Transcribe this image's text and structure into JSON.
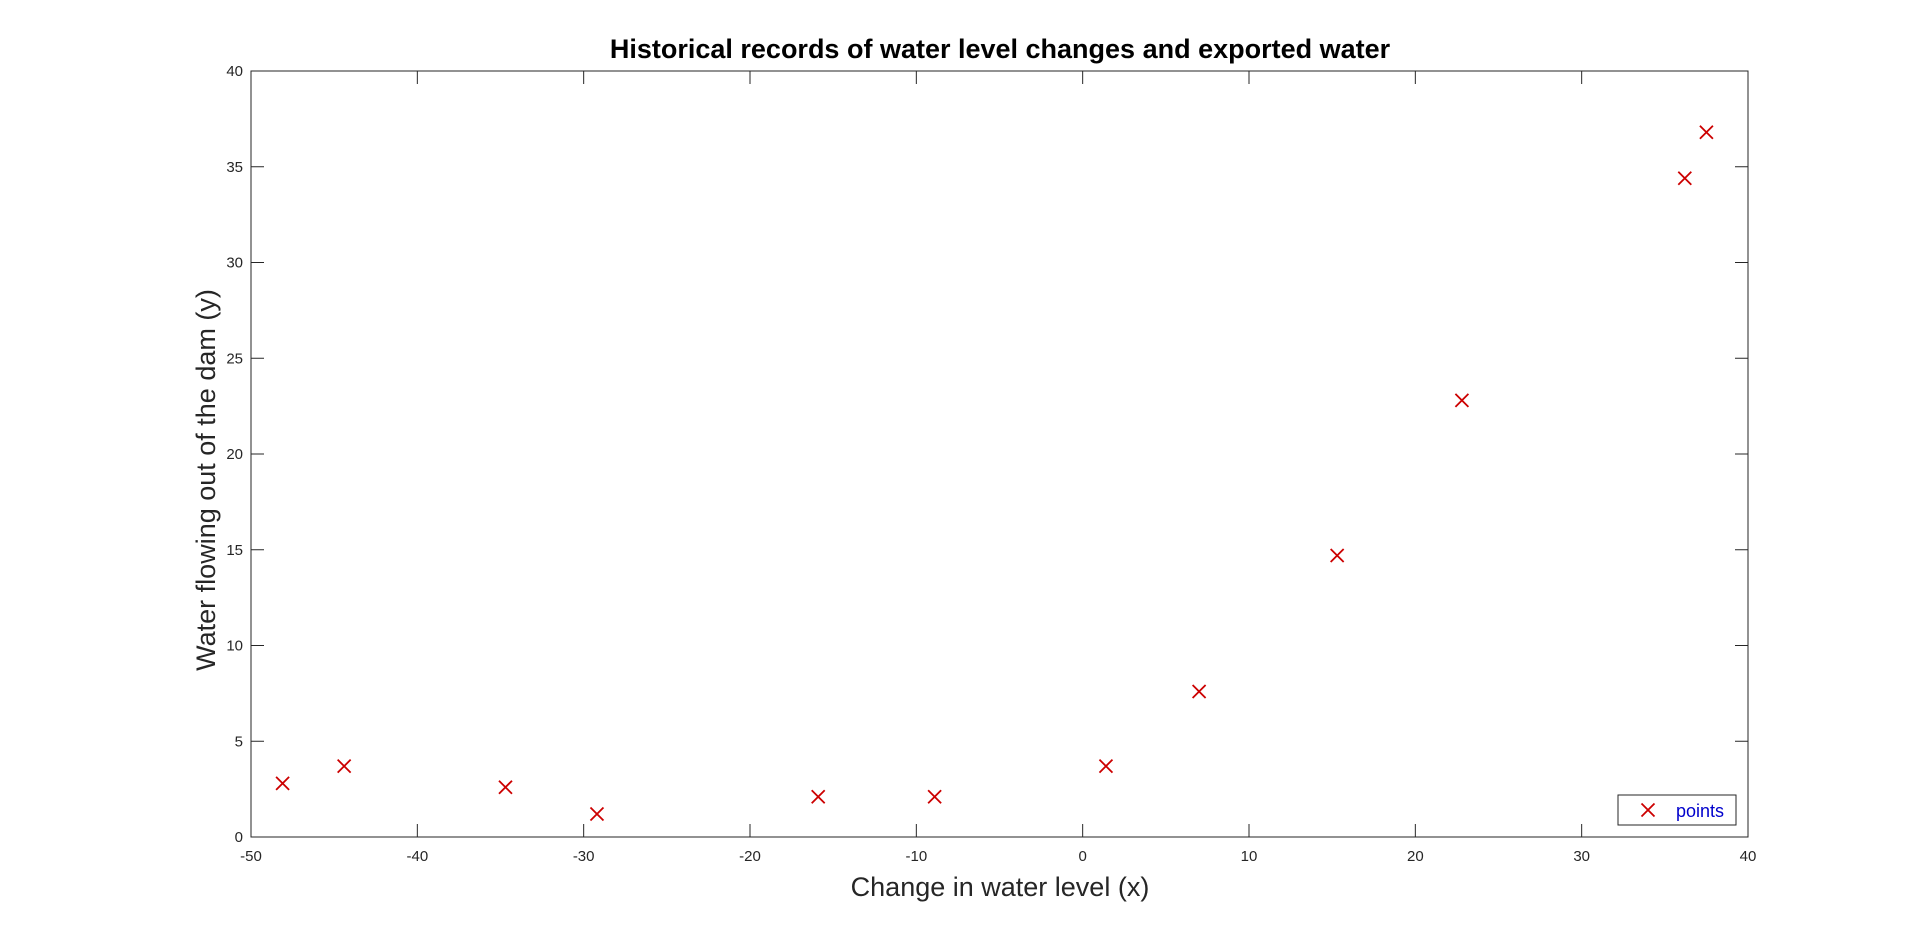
{
  "chart_data": {
    "type": "scatter",
    "title": "Historical records of water level changes and exported water",
    "xlabel": "Change in water level (x)",
    "ylabel": "Water flowing out of the dam (y)",
    "xlim": [
      -50,
      40
    ],
    "ylim": [
      0,
      40
    ],
    "xticks": [
      -50,
      -40,
      -30,
      -20,
      -10,
      0,
      10,
      20,
      30,
      40
    ],
    "yticks": [
      0,
      5,
      10,
      15,
      20,
      25,
      30,
      35,
      40
    ],
    "grid": false,
    "legend_position": "bottom-right",
    "series": [
      {
        "name": "points",
        "marker": "x",
        "color": "#cc0000",
        "points": [
          {
            "x": -48.1,
            "y": 2.8
          },
          {
            "x": -44.4,
            "y": 3.7
          },
          {
            "x": -34.7,
            "y": 2.6
          },
          {
            "x": -29.2,
            "y": 1.2
          },
          {
            "x": -15.9,
            "y": 2.1
          },
          {
            "x": -8.9,
            "y": 2.1
          },
          {
            "x": 1.4,
            "y": 3.7
          },
          {
            "x": 7.0,
            "y": 7.6
          },
          {
            "x": 15.3,
            "y": 14.7
          },
          {
            "x": 22.8,
            "y": 22.8
          },
          {
            "x": 36.2,
            "y": 34.4
          },
          {
            "x": 37.5,
            "y": 36.8
          }
        ]
      }
    ]
  },
  "colors": {
    "axis": "#262626",
    "legend_text": "#0000cc",
    "marker": "#cc0000",
    "background": "#ffffff"
  }
}
